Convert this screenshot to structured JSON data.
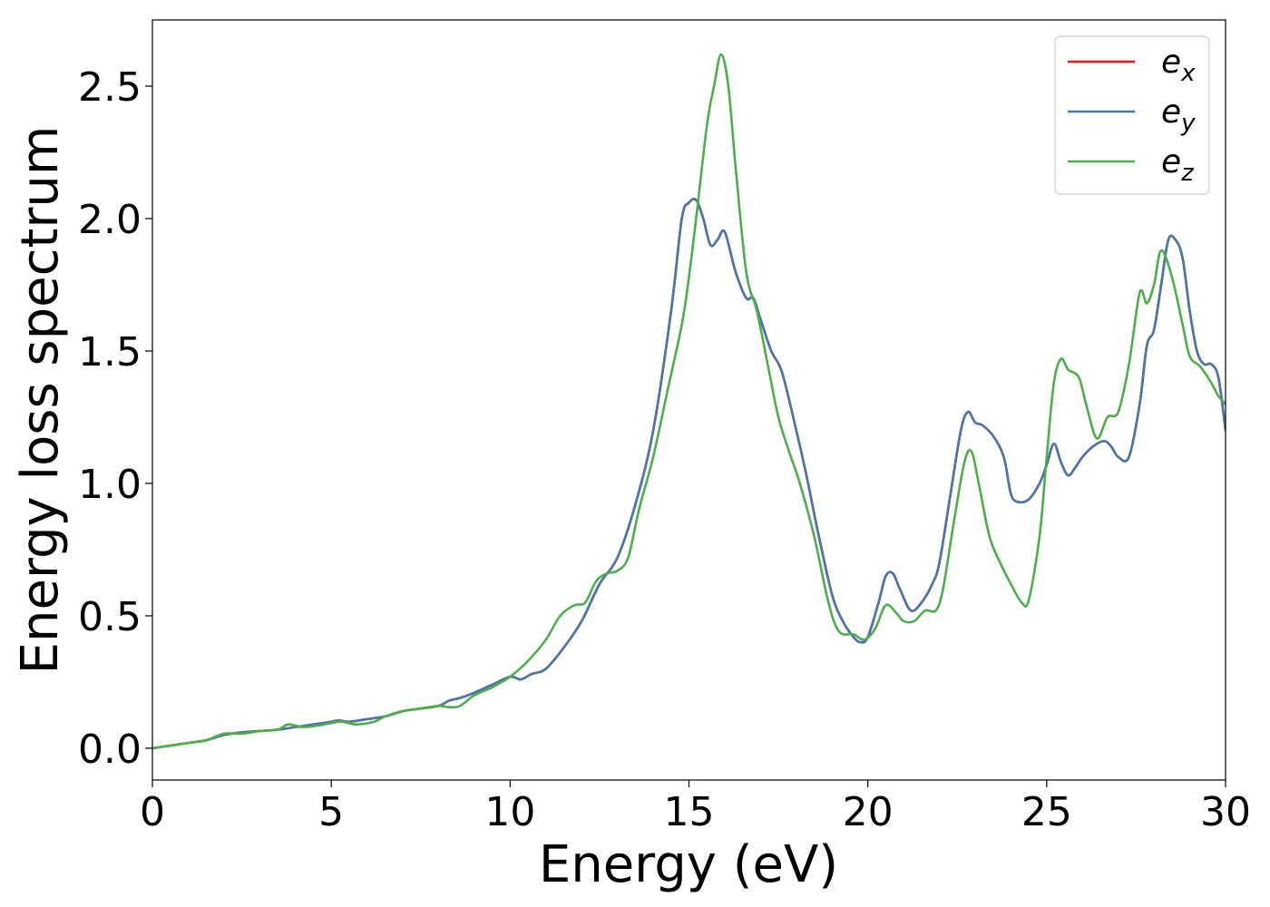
{
  "chart_data": {
    "type": "line",
    "title": "",
    "xlabel": "Energy (eV)",
    "ylabel": "Energy loss spectrum",
    "xlim": [
      0,
      30
    ],
    "ylim": [
      -0.12,
      2.75
    ],
    "xticks": [
      0,
      5,
      10,
      15,
      20,
      25,
      30
    ],
    "xtick_labels": [
      "0",
      "5",
      "10",
      "15",
      "20",
      "25",
      "30"
    ],
    "yticks": [
      0.0,
      0.5,
      1.0,
      1.5,
      2.0,
      2.5
    ],
    "ytick_labels": [
      "0.0",
      "0.5",
      "1.0",
      "1.5",
      "2.0",
      "2.5"
    ],
    "grid": false,
    "legend": "top-right",
    "series": [
      {
        "name": "e",
        "subscript": "x",
        "color": "#e41a1c",
        "x": [
          0,
          0.5,
          1,
          1.5,
          2,
          2.5,
          3,
          3.5,
          4,
          4.5,
          5,
          5.2,
          5.5,
          6,
          6.5,
          7,
          7.5,
          8,
          8.3,
          8.6,
          9,
          9.5,
          10,
          10.3,
          10.6,
          11,
          11.5,
          12,
          12.5,
          13,
          13.5,
          14,
          14.5,
          14.8,
          15,
          15.2,
          15.4,
          15.6,
          15.8,
          16,
          16.3,
          16.6,
          16.8,
          17,
          17.3,
          17.6,
          18,
          18.3,
          18.6,
          19,
          19.3,
          19.6,
          19.8,
          20,
          20.3,
          20.5,
          20.7,
          20.9,
          21.2,
          21.5,
          21.8,
          22,
          22.3,
          22.6,
          22.8,
          23,
          23.2,
          23.5,
          23.8,
          24,
          24.2,
          24.5,
          24.8,
          25,
          25.2,
          25.4,
          25.6,
          25.8,
          26,
          26.3,
          26.6,
          26.8,
          27,
          27.3,
          27.6,
          27.8,
          28,
          28.2,
          28.4,
          28.6,
          28.8,
          29,
          29.2,
          29.4,
          29.6,
          29.8,
          30
        ],
        "y": [
          0.0,
          0.01,
          0.02,
          0.03,
          0.05,
          0.06,
          0.065,
          0.07,
          0.08,
          0.09,
          0.1,
          0.105,
          0.1,
          0.11,
          0.12,
          0.14,
          0.15,
          0.16,
          0.18,
          0.19,
          0.21,
          0.24,
          0.27,
          0.26,
          0.28,
          0.3,
          0.38,
          0.48,
          0.62,
          0.72,
          0.92,
          1.2,
          1.65,
          2.0,
          2.06,
          2.07,
          2.0,
          1.9,
          1.92,
          1.95,
          1.8,
          1.7,
          1.7,
          1.62,
          1.5,
          1.42,
          1.2,
          1.02,
          0.82,
          0.58,
          0.48,
          0.42,
          0.4,
          0.42,
          0.55,
          0.65,
          0.66,
          0.6,
          0.52,
          0.55,
          0.62,
          0.7,
          0.95,
          1.2,
          1.27,
          1.23,
          1.22,
          1.18,
          1.1,
          0.96,
          0.93,
          0.94,
          1.0,
          1.07,
          1.15,
          1.08,
          1.03,
          1.06,
          1.1,
          1.14,
          1.16,
          1.14,
          1.1,
          1.1,
          1.3,
          1.52,
          1.58,
          1.75,
          1.92,
          1.92,
          1.85,
          1.65,
          1.5,
          1.45,
          1.45,
          1.4,
          1.2
        ]
      },
      {
        "name": "e",
        "subscript": "y",
        "color": "#4778ad",
        "x": [
          0,
          0.5,
          1,
          1.5,
          2,
          2.5,
          3,
          3.5,
          4,
          4.5,
          5,
          5.2,
          5.5,
          6,
          6.5,
          7,
          7.5,
          8,
          8.3,
          8.6,
          9,
          9.5,
          10,
          10.3,
          10.6,
          11,
          11.5,
          12,
          12.5,
          13,
          13.5,
          14,
          14.5,
          14.8,
          15,
          15.2,
          15.4,
          15.6,
          15.8,
          16,
          16.3,
          16.6,
          16.8,
          17,
          17.3,
          17.6,
          18,
          18.3,
          18.6,
          19,
          19.3,
          19.6,
          19.8,
          20,
          20.3,
          20.5,
          20.7,
          20.9,
          21.2,
          21.5,
          21.8,
          22,
          22.3,
          22.6,
          22.8,
          23,
          23.2,
          23.5,
          23.8,
          24,
          24.2,
          24.5,
          24.8,
          25,
          25.2,
          25.4,
          25.6,
          25.8,
          26,
          26.3,
          26.6,
          26.8,
          27,
          27.3,
          27.6,
          27.8,
          28,
          28.2,
          28.4,
          28.6,
          28.8,
          29,
          29.2,
          29.4,
          29.6,
          29.8,
          30
        ],
        "y": [
          0.0,
          0.01,
          0.02,
          0.03,
          0.05,
          0.06,
          0.065,
          0.07,
          0.08,
          0.09,
          0.1,
          0.105,
          0.1,
          0.11,
          0.12,
          0.14,
          0.15,
          0.16,
          0.18,
          0.19,
          0.21,
          0.24,
          0.27,
          0.26,
          0.28,
          0.3,
          0.38,
          0.48,
          0.62,
          0.72,
          0.92,
          1.2,
          1.65,
          2.0,
          2.06,
          2.07,
          2.0,
          1.9,
          1.92,
          1.95,
          1.8,
          1.7,
          1.7,
          1.62,
          1.5,
          1.42,
          1.2,
          1.02,
          0.82,
          0.58,
          0.48,
          0.42,
          0.4,
          0.42,
          0.55,
          0.65,
          0.66,
          0.6,
          0.52,
          0.55,
          0.62,
          0.7,
          0.95,
          1.2,
          1.27,
          1.23,
          1.22,
          1.18,
          1.1,
          0.96,
          0.93,
          0.94,
          1.0,
          1.07,
          1.15,
          1.08,
          1.03,
          1.06,
          1.1,
          1.14,
          1.16,
          1.14,
          1.1,
          1.1,
          1.3,
          1.52,
          1.58,
          1.75,
          1.92,
          1.92,
          1.85,
          1.65,
          1.5,
          1.45,
          1.45,
          1.4,
          1.2
        ]
      },
      {
        "name": "e",
        "subscript": "z",
        "color": "#4daf4a",
        "x": [
          0,
          0.5,
          1,
          1.5,
          2,
          2.5,
          3,
          3.5,
          3.8,
          4.2,
          4.6,
          5,
          5.3,
          5.7,
          6.2,
          6.5,
          7,
          7.5,
          8,
          8.3,
          8.6,
          9,
          9.5,
          10,
          10.5,
          11,
          11.4,
          11.8,
          12.1,
          12.4,
          12.7,
          13,
          13.3,
          13.6,
          14,
          14.4,
          14.8,
          15,
          15.2,
          15.5,
          15.7,
          15.9,
          16.1,
          16.3,
          16.6,
          16.9,
          17.2,
          17.5,
          17.8,
          18.1,
          18.5,
          18.9,
          19.2,
          19.6,
          19.9,
          20.2,
          20.5,
          20.8,
          21,
          21.3,
          21.6,
          21.9,
          22.1,
          22.4,
          22.7,
          22.9,
          23.1,
          23.4,
          23.7,
          24,
          24.3,
          24.5,
          24.8,
          25,
          25.2,
          25.4,
          25.6,
          25.9,
          26.1,
          26.4,
          26.7,
          27,
          27.3,
          27.6,
          27.8,
          28,
          28.2,
          28.5,
          28.8,
          29,
          29.3,
          29.6,
          29.8,
          30
        ],
        "y": [
          0.0,
          0.01,
          0.02,
          0.03,
          0.055,
          0.055,
          0.065,
          0.07,
          0.09,
          0.08,
          0.085,
          0.095,
          0.1,
          0.09,
          0.1,
          0.12,
          0.14,
          0.15,
          0.16,
          0.155,
          0.16,
          0.2,
          0.23,
          0.27,
          0.33,
          0.41,
          0.5,
          0.54,
          0.55,
          0.63,
          0.66,
          0.67,
          0.72,
          0.9,
          1.1,
          1.35,
          1.6,
          1.78,
          2.0,
          2.35,
          2.5,
          2.62,
          2.5,
          2.2,
          1.8,
          1.65,
          1.45,
          1.25,
          1.12,
          1.0,
          0.8,
          0.55,
          0.44,
          0.43,
          0.41,
          0.45,
          0.54,
          0.51,
          0.48,
          0.48,
          0.52,
          0.52,
          0.6,
          0.85,
          1.08,
          1.12,
          1.0,
          0.8,
          0.7,
          0.62,
          0.55,
          0.56,
          0.8,
          1.1,
          1.38,
          1.47,
          1.43,
          1.4,
          1.3,
          1.17,
          1.25,
          1.27,
          1.45,
          1.72,
          1.68,
          1.75,
          1.88,
          1.78,
          1.6,
          1.48,
          1.44,
          1.38,
          1.33,
          1.3
        ]
      }
    ]
  }
}
